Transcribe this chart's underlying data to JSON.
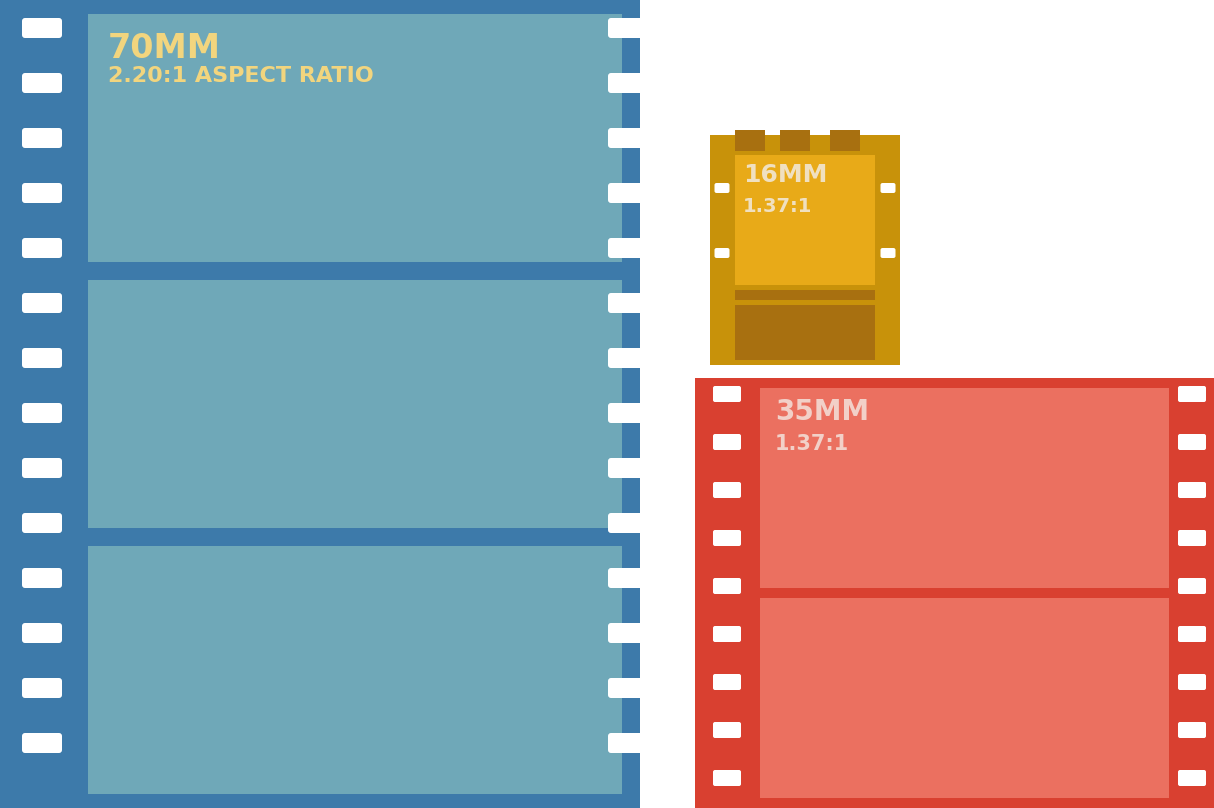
{
  "bg_color": "#ffffff",
  "film70_bg": "#3d7aaa",
  "film70_frame": "#6fa8b8",
  "film70_label": "70MM",
  "film70_sublabel": "2.20:1 ASPECT RATIO",
  "film70_label_color": "#f2d57e",
  "film70_sublabel_color": "#f2d57e",
  "film16_bg": "#c8920a",
  "film16_frame_bright": "#e8aa18",
  "film16_frame_dark": "#a87010",
  "film16_label": "16MM",
  "film16_sublabel": "1.37:1",
  "film16_label_color": "#f0e0c0",
  "film35_bg": "#d94030",
  "film35_frame": "#eb7060",
  "film35_label": "35MM",
  "film35_sublabel": "1.37:1",
  "film35_label_color": "#f2d0c8",
  "sprocket_color": "#ffffff"
}
